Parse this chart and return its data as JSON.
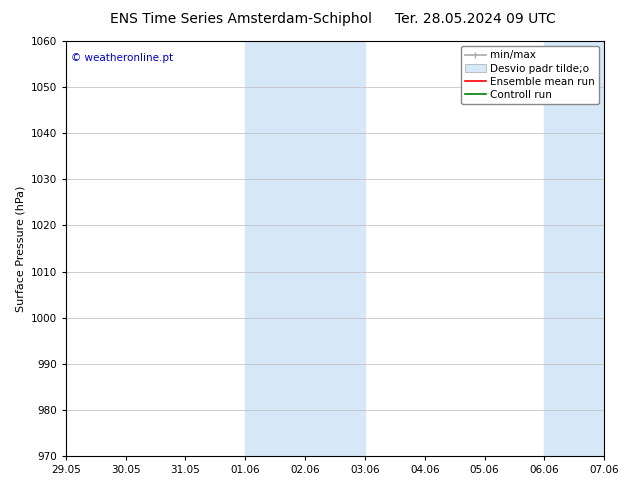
{
  "title_left": "ENS Time Series Amsterdam-Schiphol",
  "title_right": "Ter. 28.05.2024 09 UTC",
  "ylabel": "Surface Pressure (hPa)",
  "ylim": [
    970,
    1060
  ],
  "yticks": [
    970,
    980,
    990,
    1000,
    1010,
    1020,
    1030,
    1040,
    1050,
    1060
  ],
  "xtick_labels": [
    "29.05",
    "30.05",
    "31.05",
    "01.06",
    "02.06",
    "03.06",
    "04.06",
    "05.06",
    "06.06",
    "07.06"
  ],
  "shade_color": "#d6e8f7",
  "copyright_text": "© weatheronline.pt",
  "copyright_color": "#0000cc",
  "background_color": "#ffffff",
  "grid_color": "#bbbbbb",
  "title_fontsize": 10,
  "tick_fontsize": 7.5,
  "ylabel_fontsize": 8,
  "legend_fontsize": 7.5
}
